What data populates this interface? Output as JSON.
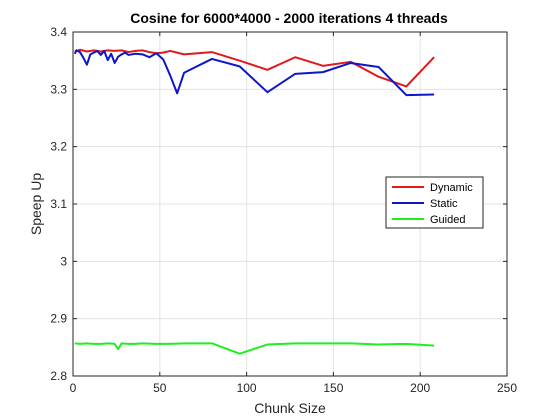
{
  "chart_data": {
    "type": "line",
    "title": "Cosine for 6000*4000 - 2000 iterations 4 threads",
    "xlabel": "Chunk Size",
    "ylabel": "Speep Up",
    "xlim": [
      0,
      250
    ],
    "ylim": [
      2.8,
      3.4
    ],
    "xticks": [
      0,
      50,
      100,
      150,
      200,
      250
    ],
    "yticks": [
      2.8,
      2.9,
      3,
      3.1,
      3.2,
      3.3,
      3.4
    ],
    "xtick_labels": [
      "0",
      "50",
      "100",
      "150",
      "200",
      "250"
    ],
    "ytick_labels": [
      "2.8",
      "2.9",
      "3",
      "3.1",
      "3.2",
      "3.3",
      "3.4"
    ],
    "grid": true,
    "legend_position": "right",
    "series": [
      {
        "name": "Dynamic",
        "color": "#e0191b",
        "x": [
          1,
          4,
          8,
          12,
          16,
          20,
          24,
          28,
          32,
          36,
          40,
          44,
          48,
          52,
          56,
          64,
          80,
          96,
          112,
          128,
          144,
          160,
          176,
          192,
          208
        ],
        "y": [
          3.366,
          3.369,
          3.366,
          3.368,
          3.366,
          3.368,
          3.367,
          3.368,
          3.365,
          3.367,
          3.368,
          3.365,
          3.363,
          3.364,
          3.367,
          3.361,
          3.365,
          3.35,
          3.334,
          3.356,
          3.341,
          3.348,
          3.322,
          3.305,
          3.356
        ]
      },
      {
        "name": "Static",
        "color": "#0e17c8",
        "x": [
          1,
          2,
          4,
          6,
          8,
          10,
          12,
          14,
          16,
          18,
          20,
          22,
          24,
          26,
          28,
          30,
          32,
          36,
          40,
          44,
          48,
          52,
          56,
          60,
          64,
          80,
          96,
          112,
          128,
          144,
          160,
          176,
          192,
          208
        ],
        "y": [
          3.362,
          3.368,
          3.365,
          3.355,
          3.343,
          3.361,
          3.364,
          3.367,
          3.36,
          3.367,
          3.351,
          3.362,
          3.346,
          3.357,
          3.361,
          3.364,
          3.36,
          3.362,
          3.361,
          3.356,
          3.363,
          3.352,
          3.324,
          3.293,
          3.329,
          3.353,
          3.34,
          3.295,
          3.327,
          3.33,
          3.346,
          3.339,
          3.29,
          3.291
        ]
      },
      {
        "name": "Guided",
        "color": "#1ef01e",
        "x": [
          1,
          4,
          8,
          12,
          16,
          20,
          24,
          26,
          28,
          32,
          36,
          40,
          48,
          56,
          64,
          80,
          96,
          112,
          128,
          144,
          160,
          176,
          192,
          208
        ],
        "y": [
          2.857,
          2.856,
          2.857,
          2.856,
          2.856,
          2.857,
          2.856,
          2.847,
          2.857,
          2.856,
          2.856,
          2.857,
          2.856,
          2.856,
          2.857,
          2.857,
          2.839,
          2.855,
          2.857,
          2.857,
          2.857,
          2.855,
          2.856,
          2.853
        ]
      }
    ]
  }
}
